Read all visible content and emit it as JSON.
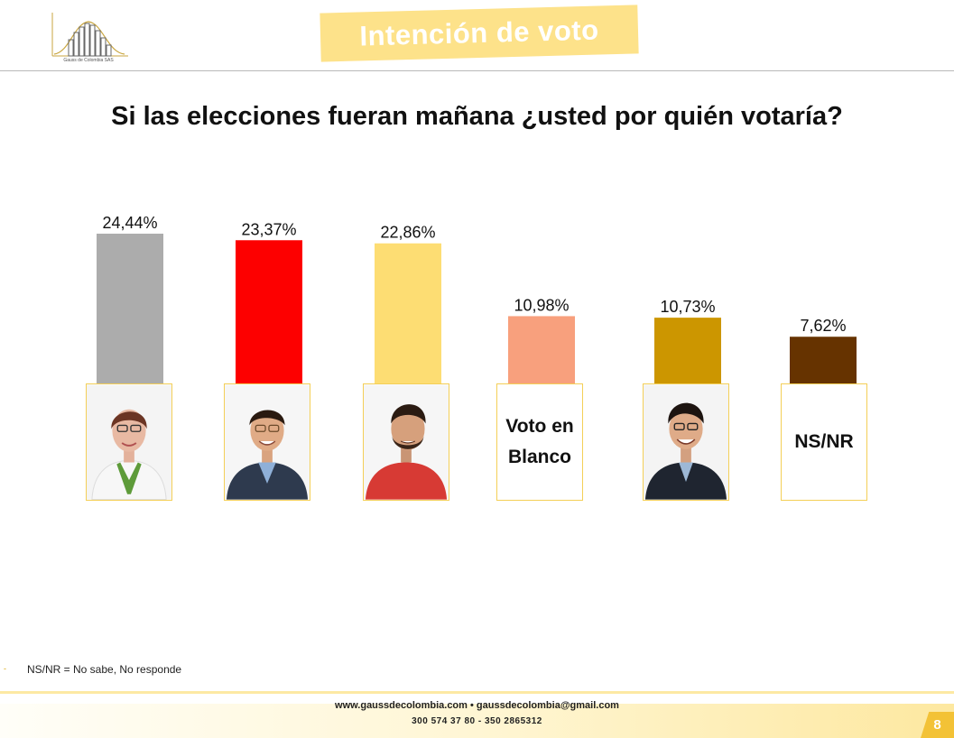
{
  "header": {
    "logo_text": "Gauss de Colombia SAS",
    "banner_title": "Intención de voto"
  },
  "question": "Si las elecciones fueran mañana ¿usted por quién votaría?",
  "chart_data": {
    "type": "bar",
    "title": "Si las elecciones fueran mañana ¿usted por quién votaría?",
    "categories": [
      "",
      "",
      "",
      "Voto en Blanco",
      "",
      "NS/NR"
    ],
    "values": [
      24.44,
      23.37,
      22.86,
      10.98,
      10.73,
      7.62
    ],
    "value_labels": [
      "24,44%",
      "23,37%",
      "22,86%",
      "10,98%",
      "10,73%",
      "7,62%"
    ],
    "colors": [
      "#acacac",
      "#fd0000",
      "#fddd73",
      "#f8a07d",
      "#cc9600",
      "#663300"
    ],
    "ylim": [
      0,
      24.44
    ],
    "grid": false,
    "legend": "none"
  },
  "labels": {
    "blank_vote_line1": "Voto en",
    "blank_vote_line2": "Blanco",
    "nsnr": "NS/NR"
  },
  "footnote": "NS/NR = No sabe, No responde",
  "footnote_bullet": "-",
  "footer": {
    "contact": "www.gaussdecolombia.com • gaussdecolombia@gmail.com",
    "phones": "300  574  37 80  -  350 2865312",
    "page_number": "8"
  }
}
